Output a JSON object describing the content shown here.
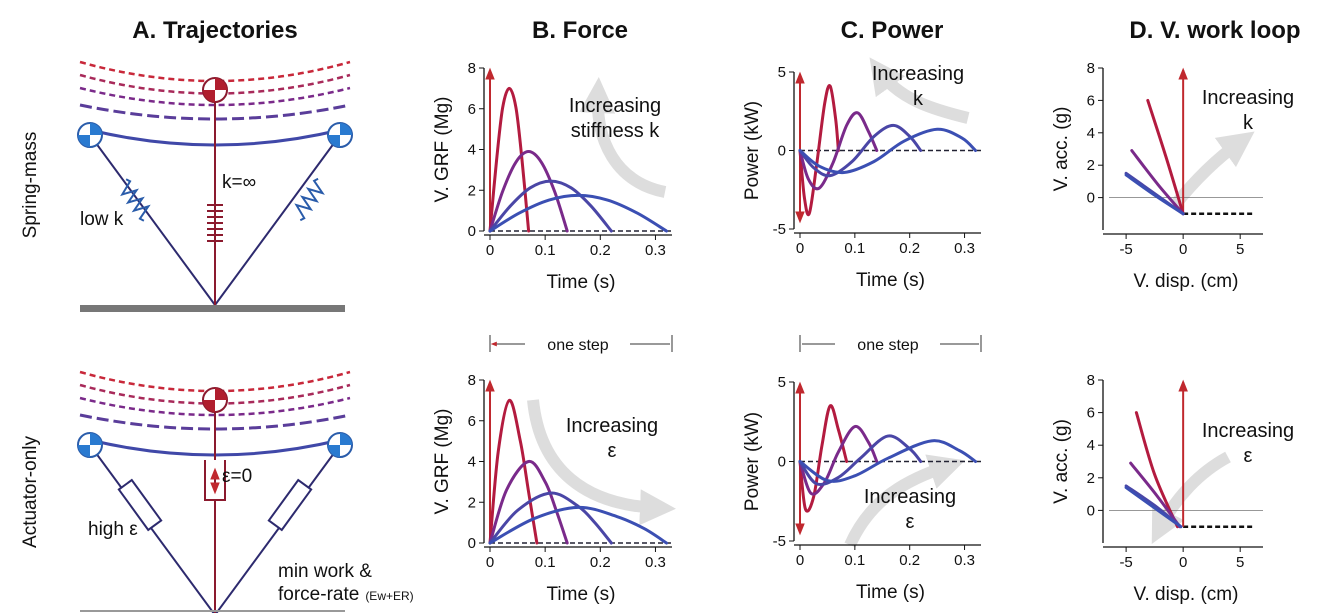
{
  "columns": [
    "A. Trajectories",
    "B.  Force",
    "C.  Power",
    "D. V. work loop"
  ],
  "rows": [
    "Spring-mass",
    "Actuator-only"
  ],
  "diagram": {
    "low_k": "low k",
    "k_inf": "k=∞",
    "high_eps": "high ε",
    "eps_zero": "ε=0",
    "min_work": "min work &",
    "force_rate": "force-rate",
    "force_rate_sub": "(Ew+ER)"
  },
  "step_labels": [
    "one step",
    "one step"
  ],
  "chart_data": [
    {
      "type": "line",
      "xlabel": "Time (s)",
      "ylabel": "V. GRF (Mg)",
      "xlim": [
        0,
        0.33
      ],
      "ylim": [
        0,
        8
      ],
      "xticks": [
        0,
        0.1,
        0.2,
        0.3
      ],
      "yticks": [
        0,
        2,
        4,
        6,
        8
      ],
      "annotation": [
        "Increasing",
        "stiffness k"
      ],
      "series": [
        {
          "color": "#b31b3f",
          "x": [
            0,
            0.012,
            0.023,
            0.035,
            0.047,
            0.058,
            0.07
          ],
          "values": [
            0,
            3.5,
            6.06,
            7,
            6.06,
            3.5,
            0
          ]
        },
        {
          "color": "#7a2a8a",
          "x": [
            0,
            0.023,
            0.047,
            0.07,
            0.093,
            0.117,
            0.14
          ],
          "values": [
            0,
            1.95,
            3.38,
            3.9,
            3.38,
            1.95,
            0
          ]
        },
        {
          "color": "#4a46a6",
          "x": [
            0,
            0.037,
            0.073,
            0.11,
            0.147,
            0.183,
            0.22
          ],
          "values": [
            0,
            1.23,
            2.12,
            2.45,
            2.12,
            1.23,
            0
          ]
        },
        {
          "color": "#3b4fb3",
          "x": [
            0,
            0.053,
            0.107,
            0.16,
            0.213,
            0.267,
            0.32
          ],
          "values": [
            0,
            0.88,
            1.52,
            1.75,
            1.52,
            0.88,
            0
          ]
        }
      ]
    },
    {
      "type": "line",
      "xlabel": "Time (s)",
      "ylabel": "V. GRF (Mg)",
      "xlim": [
        0,
        0.33
      ],
      "ylim": [
        0,
        8
      ],
      "xticks": [
        0,
        0.1,
        0.2,
        0.3
      ],
      "yticks": [
        0,
        2,
        4,
        6,
        8
      ],
      "annotation": [
        "Increasing",
        "ε"
      ],
      "series": [
        {
          "color": "#b31b3f",
          "x": [
            0,
            0.015,
            0.035,
            0.055,
            0.07,
            0.085
          ],
          "values": [
            0,
            4.5,
            7,
            5,
            2.5,
            0
          ]
        },
        {
          "color": "#7a2a8a",
          "x": [
            0,
            0.03,
            0.07,
            0.1,
            0.12,
            0.14
          ],
          "values": [
            0,
            2.6,
            4,
            3,
            1.6,
            0
          ]
        },
        {
          "color": "#4a46a6",
          "x": [
            0,
            0.05,
            0.11,
            0.16,
            0.19,
            0.22
          ],
          "values": [
            0,
            1.6,
            2.45,
            1.8,
            1,
            0
          ]
        },
        {
          "color": "#3b4fb3",
          "x": [
            0,
            0.08,
            0.16,
            0.23,
            0.28,
            0.32
          ],
          "values": [
            0,
            1.2,
            1.75,
            1.3,
            0.7,
            0
          ]
        }
      ]
    },
    {
      "type": "line",
      "xlabel": "Time (s)",
      "ylabel": "Power (kW)",
      "xlim": [
        0,
        0.33
      ],
      "ylim": [
        -5,
        5
      ],
      "xticks": [
        0,
        0.1,
        0.2,
        0.3
      ],
      "yticks": [
        -5,
        0,
        5
      ],
      "annotation": [
        "Increasing",
        "k"
      ],
      "series": [
        {
          "color": "#b31b3f",
          "x": [
            0,
            0.008,
            0.017,
            0.03,
            0.045,
            0.055,
            0.065,
            0.07
          ],
          "values": [
            0,
            -3,
            -4,
            -1,
            3,
            4.1,
            2,
            0
          ]
        },
        {
          "color": "#7a2a8a",
          "x": [
            0,
            0.015,
            0.035,
            0.06,
            0.085,
            0.105,
            0.125,
            0.14
          ],
          "values": [
            0,
            -1.8,
            -2.4,
            -0.8,
            1.6,
            2.4,
            1.2,
            0
          ]
        },
        {
          "color": "#4a46a6",
          "x": [
            0,
            0.025,
            0.055,
            0.095,
            0.135,
            0.17,
            0.2,
            0.22
          ],
          "values": [
            0,
            -1.1,
            -1.6,
            -0.7,
            0.9,
            1.6,
            0.9,
            0
          ]
        },
        {
          "color": "#3b4fb3",
          "x": [
            0,
            0.035,
            0.08,
            0.135,
            0.19,
            0.25,
            0.295,
            0.32
          ],
          "values": [
            0,
            -1,
            -1.4,
            -0.7,
            0.6,
            1.35,
            0.8,
            0
          ]
        }
      ]
    },
    {
      "type": "line",
      "xlabel": "Time (s)",
      "ylabel": "Power (kW)",
      "xlim": [
        0,
        0.33
      ],
      "ylim": [
        -5,
        5
      ],
      "xticks": [
        0,
        0.1,
        0.2,
        0.3
      ],
      "yticks": [
        -5,
        0,
        5
      ],
      "annotation": [
        "Increasing",
        "ε"
      ],
      "series": [
        {
          "color": "#b31b3f",
          "x": [
            0,
            0.01,
            0.025,
            0.04,
            0.055,
            0.07,
            0.085
          ],
          "values": [
            0,
            -3,
            -2.2,
            1,
            3.5,
            2,
            0
          ]
        },
        {
          "color": "#7a2a8a",
          "x": [
            0,
            0.02,
            0.045,
            0.07,
            0.1,
            0.125,
            0.14
          ],
          "values": [
            0,
            -2,
            -1.3,
            0.6,
            2.2,
            1.2,
            0
          ]
        },
        {
          "color": "#4a46a6",
          "x": [
            0,
            0.03,
            0.07,
            0.11,
            0.16,
            0.2,
            0.22
          ],
          "values": [
            0,
            -1.4,
            -1,
            0.2,
            1.6,
            0.8,
            0
          ]
        },
        {
          "color": "#3b4fb3",
          "x": [
            0,
            0.05,
            0.1,
            0.16,
            0.24,
            0.29,
            0.32
          ],
          "values": [
            0,
            -1.2,
            -0.9,
            0.2,
            1.3,
            0.7,
            0
          ]
        }
      ]
    },
    {
      "type": "line",
      "xlabel": "V. disp. (cm)",
      "ylabel": "V. acc. (g)",
      "xlim": [
        -6.5,
        7
      ],
      "ylim": [
        -2,
        8
      ],
      "xticks": [
        -5,
        0,
        5
      ],
      "yticks": [
        0,
        2,
        4,
        6,
        8
      ],
      "annotation": [
        "Increasing",
        "k"
      ],
      "series": [
        {
          "color": "#b31b3f",
          "x": [
            -3.1,
            -1.5,
            0
          ],
          "values": [
            6,
            2.5,
            -1
          ]
        },
        {
          "color": "#7a2a8a",
          "x": [
            -4.5,
            -2.2,
            0
          ],
          "values": [
            2.9,
            0.8,
            -1
          ]
        },
        {
          "color": "#4a46a6",
          "x": [
            -5,
            -2.5,
            0
          ],
          "values": [
            1.5,
            0.25,
            -1
          ]
        },
        {
          "color": "#3b4fb3",
          "x": [
            -5,
            -2.5,
            0
          ],
          "values": [
            1.4,
            0.15,
            -1
          ]
        }
      ]
    },
    {
      "type": "line",
      "xlabel": "V. disp. (cm)",
      "ylabel": "V. acc. (g)",
      "xlim": [
        -6.5,
        7
      ],
      "ylim": [
        -2,
        8
      ],
      "xticks": [
        -5,
        0,
        5
      ],
      "yticks": [
        0,
        2,
        4,
        6,
        8
      ],
      "annotation": [
        "Increasing",
        "ε"
      ],
      "series": [
        {
          "color": "#b31b3f",
          "x": [
            -4.1,
            -2.5,
            -0.5
          ],
          "values": [
            6,
            2.2,
            -1
          ]
        },
        {
          "color": "#7a2a8a",
          "x": [
            -4.6,
            -2.3,
            -0.3
          ],
          "values": [
            2.9,
            0.9,
            -1
          ]
        },
        {
          "color": "#4a46a6",
          "x": [
            -5,
            -2.5,
            -0.2
          ],
          "values": [
            1.5,
            0.3,
            -1
          ]
        },
        {
          "color": "#3b4fb3",
          "x": [
            -5,
            -2.6,
            -0.2
          ],
          "values": [
            1.4,
            0.2,
            -1
          ]
        }
      ]
    }
  ]
}
